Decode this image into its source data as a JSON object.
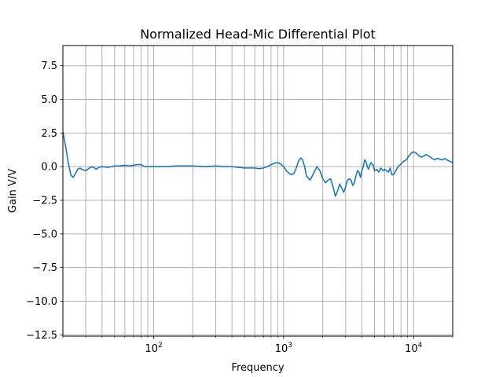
{
  "chart_data": {
    "type": "line",
    "title": "Normalized Head-Mic Differential Plot",
    "xlabel": "Frequency",
    "ylabel": "Gain V/V",
    "xscale": "log",
    "xlim": [
      20,
      20000
    ],
    "ylim": [
      -12.6,
      9.0
    ],
    "grid": true,
    "line_color": "#1f77b4",
    "x_ticks": [
      {
        "value": 100,
        "mantissa": "10",
        "exponent": "2"
      },
      {
        "value": 1000,
        "mantissa": "10",
        "exponent": "3"
      },
      {
        "value": 10000,
        "mantissa": "10",
        "exponent": "4"
      }
    ],
    "y_ticks": [
      {
        "value": 7.5,
        "label": "7.5"
      },
      {
        "value": 5.0,
        "label": "5.0"
      },
      {
        "value": 2.5,
        "label": "2.5"
      },
      {
        "value": 0.0,
        "label": "0.0"
      },
      {
        "value": -2.5,
        "label": "−2.5"
      },
      {
        "value": -5.0,
        "label": "−5.0"
      },
      {
        "value": -7.5,
        "label": "−7.5"
      },
      {
        "value": -10.0,
        "label": "−10.0"
      },
      {
        "value": -12.5,
        "label": "−12.5"
      }
    ],
    "series": [
      {
        "x": [
          20,
          21,
          22,
          23,
          24,
          25,
          26,
          27,
          28,
          29,
          30,
          32,
          34,
          36,
          38,
          40,
          45,
          50,
          55,
          60,
          65,
          70,
          75,
          80,
          85,
          90,
          100,
          120,
          150,
          200,
          250,
          300,
          350,
          400,
          450,
          500,
          550,
          600,
          650,
          700,
          750,
          800,
          850,
          900,
          950,
          1000,
          1050,
          1100,
          1150,
          1200,
          1250,
          1300,
          1350,
          1400,
          1450,
          1500,
          1600,
          1700,
          1800,
          1900,
          2000,
          2100,
          2200,
          2300,
          2400,
          2500,
          2600,
          2700,
          2800,
          2900,
          3000,
          3100,
          3200,
          3300,
          3400,
          3500,
          3600,
          3700,
          3800,
          3900,
          4000,
          4100,
          4200,
          4300,
          4400,
          4500,
          4600,
          4700,
          4800,
          4900,
          5000,
          5200,
          5400,
          5600,
          5800,
          6000,
          6200,
          6400,
          6600,
          6800,
          7000,
          7300,
          7600,
          8000,
          8400,
          8800,
          9200,
          9600,
          10000,
          10500,
          11000,
          11500,
          12000,
          12500,
          13000,
          13500,
          14000,
          14500,
          15000,
          15500,
          16000,
          16500,
          17000,
          17500,
          18000,
          18500,
          19000,
          19500,
          20000
        ],
        "y": [
          2.6,
          1.5,
          0.3,
          -0.6,
          -0.8,
          -0.5,
          -0.2,
          -0.1,
          -0.2,
          -0.25,
          -0.3,
          -0.1,
          0.0,
          -0.2,
          -0.05,
          0.0,
          -0.05,
          0.05,
          0.05,
          0.1,
          0.05,
          0.1,
          0.15,
          0.15,
          0.0,
          0.0,
          0.0,
          0.0,
          0.05,
          0.05,
          0.0,
          0.05,
          0.0,
          0.0,
          -0.05,
          -0.1,
          -0.1,
          -0.1,
          -0.15,
          -0.1,
          0.0,
          0.15,
          0.25,
          0.3,
          0.2,
          0.0,
          -0.3,
          -0.5,
          -0.6,
          -0.5,
          -0.1,
          0.4,
          0.65,
          0.5,
          0.0,
          -0.7,
          -1.0,
          -0.5,
          0.0,
          -0.3,
          -0.9,
          -1.2,
          -1.0,
          -0.9,
          -1.5,
          -2.2,
          -1.8,
          -1.3,
          -1.6,
          -1.9,
          -1.5,
          -1.0,
          -0.9,
          -1.0,
          -1.4,
          -1.2,
          -0.7,
          -0.3,
          -0.4,
          -0.8,
          -0.3,
          0.0,
          0.5,
          0.4,
          0.0,
          -0.2,
          0.1,
          0.3,
          0.2,
          0.1,
          -0.3,
          -0.2,
          -0.4,
          -0.1,
          -0.3,
          -0.2,
          -0.3,
          -0.4,
          -0.1,
          -0.6,
          -0.6,
          -0.3,
          0.0,
          0.2,
          0.4,
          0.5,
          0.8,
          1.0,
          1.1,
          1.0,
          0.8,
          0.7,
          0.8,
          0.9,
          0.8,
          0.7,
          0.6,
          0.5,
          0.6,
          0.6,
          0.55,
          0.5,
          0.55,
          0.6,
          0.5,
          0.45,
          0.4,
          0.35,
          0.3
        ]
      }
    ]
  }
}
